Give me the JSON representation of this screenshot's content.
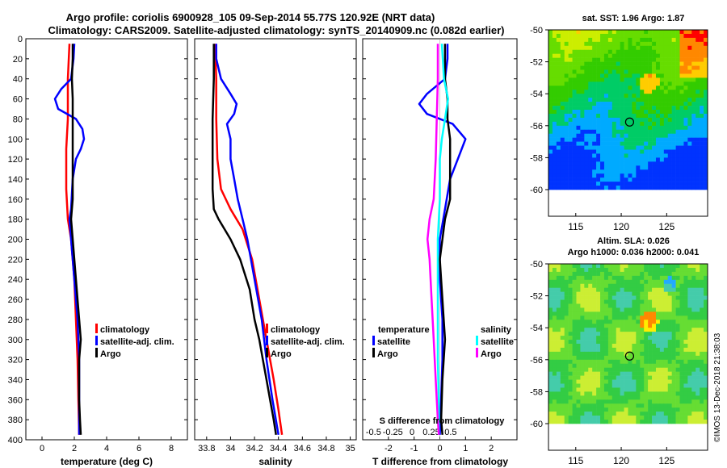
{
  "header": {
    "title_line1": "Argo profile: coriolis 6900928_105 09-Sep-2014 55.77S 120.92E (NRT data)",
    "title_line2": "Climatology: CARS2009. Satellite-adjusted climatology: synTS_20140909.nc (0.082d earlier)"
  },
  "colors": {
    "climatology": "#ff0000",
    "satellite": "#0000ff",
    "argo": "#000000",
    "satellite_sal": "#00ffff",
    "argo_sal": "#ff00ff"
  },
  "chart_data": [
    {
      "type": "line",
      "id": "temperature",
      "xlabel": "temperature (deg C)",
      "ylabel": "",
      "xlim": [
        -1,
        9
      ],
      "ylim": [
        400,
        0
      ],
      "xticks": [
        "0",
        "2",
        "4",
        "6",
        "8"
      ],
      "xtick_values": [
        0,
        2,
        4,
        6,
        8
      ],
      "yticks": [
        "0",
        "20",
        "40",
        "60",
        "80",
        "100",
        "120",
        "140",
        "160",
        "180",
        "200",
        "220",
        "240",
        "260",
        "280",
        "300",
        "320",
        "340",
        "360",
        "380",
        "400"
      ],
      "ytick_values": [
        0,
        20,
        40,
        60,
        80,
        100,
        120,
        140,
        160,
        180,
        200,
        220,
        240,
        260,
        280,
        300,
        320,
        340,
        360,
        380,
        400
      ],
      "legend": [
        "climatology",
        "satellite-adj. clim.",
        "Argo"
      ],
      "series": [
        {
          "name": "climatology",
          "color_key": "climatology",
          "depth": [
            5,
            40,
            60,
            80,
            110,
            150,
            180,
            200,
            240,
            280,
            320,
            360,
            395
          ],
          "values": [
            1.7,
            1.6,
            1.6,
            1.6,
            1.5,
            1.5,
            1.6,
            1.8,
            2.0,
            2.1,
            2.2,
            2.25,
            2.3
          ]
        },
        {
          "name": "satellite-adj. clim.",
          "color_key": "satellite",
          "depth": [
            5,
            20,
            40,
            50,
            60,
            70,
            80,
            90,
            100,
            110,
            120,
            140,
            170,
            180,
            200,
            240,
            280,
            320,
            360,
            395
          ],
          "values": [
            2.0,
            1.95,
            1.8,
            1.2,
            0.8,
            1.0,
            2.1,
            2.5,
            2.6,
            2.4,
            2.1,
            1.9,
            1.8,
            1.7,
            1.8,
            2.0,
            2.2,
            2.3,
            2.3,
            2.3
          ]
        },
        {
          "name": "Argo",
          "color_key": "argo",
          "depth": [
            5,
            20,
            40,
            60,
            80,
            100,
            120,
            140,
            160,
            180,
            200,
            220,
            240,
            260,
            280,
            300,
            320,
            340,
            360,
            380,
            395
          ],
          "values": [
            1.9,
            1.9,
            1.85,
            1.9,
            1.9,
            1.9,
            1.9,
            1.9,
            1.9,
            1.8,
            1.9,
            2.0,
            2.1,
            2.2,
            2.3,
            2.4,
            2.3,
            2.3,
            2.3,
            2.35,
            2.4
          ]
        }
      ]
    },
    {
      "type": "line",
      "id": "salinity",
      "xlabel": "salinity",
      "xlim": [
        33.7,
        35.05
      ],
      "ylim": [
        400,
        0
      ],
      "xticks": [
        "33.8",
        "34",
        "34.2",
        "34.4",
        "34.6",
        "34.8",
        "35"
      ],
      "xtick_values": [
        33.8,
        34,
        34.2,
        34.4,
        34.6,
        34.8,
        35
      ],
      "legend": [
        "climatology",
        "satellite-adj. clim.",
        "Argo"
      ],
      "series": [
        {
          "name": "climatology",
          "color_key": "climatology",
          "depth": [
            5,
            40,
            80,
            120,
            150,
            170,
            190,
            220,
            260,
            300,
            340,
            370,
            395
          ],
          "values": [
            33.87,
            33.88,
            33.88,
            33.89,
            33.92,
            34.0,
            34.1,
            34.18,
            34.24,
            34.3,
            34.36,
            34.4,
            34.43
          ]
        },
        {
          "name": "satellite-adj. clim.",
          "color_key": "satellite",
          "depth": [
            5,
            20,
            40,
            55,
            65,
            75,
            85,
            100,
            120,
            140,
            160,
            180,
            200,
            240,
            280,
            320,
            360,
            395
          ],
          "values": [
            33.88,
            33.88,
            33.92,
            34.0,
            34.05,
            34.03,
            33.97,
            34.0,
            34.0,
            34.03,
            34.06,
            34.1,
            34.14,
            34.2,
            34.26,
            34.3,
            34.35,
            34.4
          ]
        },
        {
          "name": "Argo",
          "color_key": "argo",
          "depth": [
            5,
            40,
            80,
            120,
            150,
            170,
            180,
            200,
            220,
            250,
            280,
            300,
            320,
            340,
            360,
            380,
            395
          ],
          "values": [
            33.86,
            33.86,
            33.85,
            33.85,
            33.85,
            33.86,
            33.9,
            34.0,
            34.08,
            34.16,
            34.2,
            34.24,
            34.27,
            34.3,
            34.33,
            34.36,
            34.38
          ]
        }
      ]
    },
    {
      "type": "line",
      "id": "difference",
      "xlabel": "T difference from climatology",
      "top_axis_label": "S difference from climatology",
      "xlim": [
        -3,
        3
      ],
      "ylim": [
        400,
        0
      ],
      "xticks": [
        "-2",
        "-1",
        "0",
        "1",
        "2"
      ],
      "xtick_values": [
        -2,
        -1,
        0,
        1,
        2
      ],
      "top_ticks": [
        "-0.5",
        "-0.25",
        "0",
        "0.25",
        "0.5"
      ],
      "top_tick_values": [
        -0.5,
        -0.25,
        0,
        0.25,
        0.5
      ],
      "legend_left_title": "temperature",
      "legend_right_title": "salinity",
      "legend_left": [
        "satellite",
        "Argo"
      ],
      "legend_right": [
        "satellite",
        "Argo"
      ],
      "series": [
        {
          "name": "T satellite",
          "color_key": "satellite",
          "depth": [
            5,
            20,
            40,
            55,
            65,
            75,
            85,
            100,
            120,
            140,
            170,
            200,
            240,
            280,
            320,
            360,
            395
          ],
          "values": [
            0.3,
            0.3,
            0.2,
            -0.5,
            -0.8,
            -0.5,
            0.5,
            1.0,
            0.7,
            0.4,
            0.2,
            0.0,
            0.0,
            0.1,
            0.1,
            0.05,
            0.0
          ]
        },
        {
          "name": "T Argo",
          "color_key": "argo",
          "depth": [
            5,
            40,
            60,
            80,
            100,
            120,
            140,
            160,
            180,
            200,
            220,
            260,
            300,
            340,
            380,
            395
          ],
          "values": [
            0.2,
            0.2,
            0.3,
            0.3,
            0.4,
            0.4,
            0.4,
            0.4,
            0.2,
            0.1,
            0.0,
            0.1,
            0.2,
            0.1,
            0.05,
            0.1
          ]
        },
        {
          "name": "S satellite",
          "color_key": "satellite_sal",
          "depth": [
            5,
            40,
            60,
            80,
            100,
            120,
            160,
            200,
            240,
            280,
            320,
            360,
            395
          ],
          "values": [
            0.02,
            0.04,
            0.08,
            0.05,
            0.02,
            0.0,
            0.0,
            -0.02,
            -0.02,
            -0.02,
            -0.02,
            -0.01,
            -0.01
          ]
        },
        {
          "name": "S Argo",
          "color_key": "argo_sal",
          "depth": [
            5,
            40,
            80,
            120,
            160,
            180,
            200,
            220,
            260,
            300,
            340,
            380,
            395
          ],
          "values": [
            -0.02,
            -0.02,
            -0.03,
            -0.04,
            -0.06,
            -0.1,
            -0.12,
            -0.1,
            -0.08,
            -0.06,
            -0.04,
            -0.02,
            -0.01
          ]
        }
      ]
    },
    {
      "type": "heatmap",
      "id": "sst_map",
      "title": "sat. SST: 1.96 Argo: 1.87",
      "xticks": [
        "115",
        "120",
        "125"
      ],
      "xtick_values": [
        115,
        120,
        125
      ],
      "yticks": [
        "-50",
        "-52",
        "-54",
        "-56",
        "-58",
        "-60"
      ],
      "ytick_values": [
        -50,
        -52,
        -54,
        -56,
        -58,
        -60
      ],
      "xlim": [
        112,
        129.5
      ],
      "ylim": [
        -60,
        -50
      ],
      "marker": {
        "lon": 120.92,
        "lat": -55.77
      }
    },
    {
      "type": "heatmap",
      "id": "sla_map",
      "title_line1": "Altim. SLA: 0.026",
      "title_line2": "Argo h1000: 0.036 h2000: 0.041",
      "xticks": [
        "115",
        "120",
        "125"
      ],
      "xtick_values": [
        115,
        120,
        125
      ],
      "yticks": [
        "-50",
        "-52",
        "-54",
        "-56",
        "-58",
        "-60"
      ],
      "ytick_values": [
        -50,
        -52,
        -54,
        -56,
        -58,
        -60
      ],
      "xlim": [
        112,
        129.5
      ],
      "ylim": [
        -60,
        -50
      ],
      "marker": {
        "lon": 120.92,
        "lat": -55.77
      }
    }
  ],
  "watermark": "©IMOS 13-Dec-2018 21:38:03"
}
